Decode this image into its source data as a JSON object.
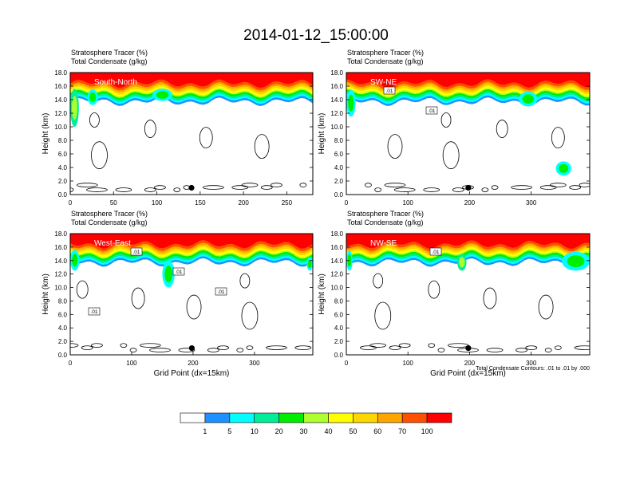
{
  "title": "2014-01-12_15:00:00",
  "chart_data": [
    {
      "type": "heatmap",
      "panel": "South-North",
      "left_labels": [
        "Stratosphere Tracer   (%)",
        "Total Condensate   (g/kg)"
      ],
      "ylabel": "Height (km)",
      "xlabel": "",
      "xlim": [
        0,
        280
      ],
      "ylim": [
        0,
        18
      ],
      "xticks": [
        0,
        50,
        100,
        150,
        200,
        250
      ],
      "yticks": [
        "0.0",
        "2.0",
        "4.0",
        "6.0",
        "8.0",
        "10.0",
        "12.0",
        "14.0",
        "16.0",
        "18.0"
      ],
      "marker_x": 140,
      "contour_labels": []
    },
    {
      "type": "heatmap",
      "panel": "SW-NE",
      "left_labels": [
        "Stratosphere Tracer   (%)",
        "Total Condensate   (g/kg)"
      ],
      "ylabel": "Height (km)",
      "xlabel": "",
      "xlim": [
        0,
        395
      ],
      "ylim": [
        0,
        18
      ],
      "xticks": [
        0,
        100,
        200,
        300
      ],
      "yticks": [
        "0.0",
        "2.0",
        "4.0",
        "6.0",
        "8.0",
        "10.0",
        "12.0",
        "14.0",
        "16.0",
        "18.0"
      ],
      "marker_x": 198,
      "contour_labels": [
        ".01",
        ".01"
      ]
    },
    {
      "type": "heatmap",
      "panel": "West-East",
      "left_labels": [
        "Stratosphere Tracer   (%)",
        "Total Condensate   (g/kg)"
      ],
      "ylabel": "Height (km)",
      "xlabel": "Grid Point (dx=15km)",
      "xlim": [
        0,
        395
      ],
      "ylim": [
        0,
        18
      ],
      "xticks": [
        0,
        100,
        200,
        300
      ],
      "yticks": [
        "0.0",
        "2.0",
        "4.0",
        "6.0",
        "8.0",
        "10.0",
        "12.0",
        "14.0",
        "16.0",
        "18.0"
      ],
      "marker_x": 198,
      "contour_labels": [
        ".01",
        ".01",
        ".01",
        ".01"
      ]
    },
    {
      "type": "heatmap",
      "panel": "NW-SE",
      "left_labels": [
        "Stratosphere Tracer   (%)",
        "Total Condensate   (g/kg)"
      ],
      "ylabel": "Height (km)",
      "xlabel": "Grid Point (dx=15km)",
      "xlim": [
        0,
        395
      ],
      "ylim": [
        0,
        18
      ],
      "xticks": [
        0,
        100,
        200,
        300
      ],
      "yticks": [
        "0.0",
        "2.0",
        "4.0",
        "6.0",
        "8.0",
        "10.0",
        "12.0",
        "14.0",
        "16.0",
        "18.0"
      ],
      "marker_x": 198,
      "contour_labels": [
        ".01"
      ],
      "footnote": "Total Condensate Contours: .01 to .01 by .000"
    }
  ],
  "colorbar": {
    "labels": [
      "1",
      "5",
      "10",
      "20",
      "30",
      "40",
      "50",
      "60",
      "70",
      "100"
    ],
    "colors": [
      "#ffffff",
      "#1e90ff",
      "#00ffff",
      "#00ee99",
      "#00ee00",
      "#adff2f",
      "#ffff00",
      "#ffd700",
      "#ffa500",
      "#ff5000",
      "#ff0000"
    ]
  }
}
